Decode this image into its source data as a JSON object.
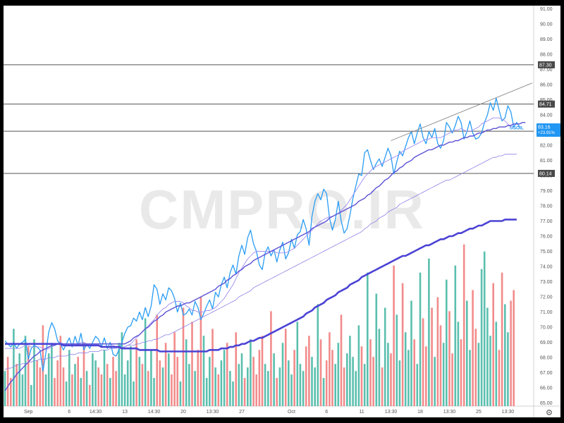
{
  "chart_data": {
    "type": "line",
    "title": "",
    "watermark": "CMPRO.IR",
    "ylim": [
      64.8,
      91.2
    ],
    "y_ticks": [
      65,
      66,
      67,
      68,
      69,
      70,
      71,
      72,
      73,
      74,
      75,
      76,
      77,
      78,
      79,
      80,
      81,
      82,
      83,
      84,
      85,
      86,
      87,
      88,
      89,
      90,
      91
    ],
    "y_tick_labels": [
      "65.00",
      "66.00",
      "67.00",
      "68.00",
      "69.00",
      "70.00",
      "71.00",
      "72.00",
      "73.00",
      "74.00",
      "75.00",
      "76.00",
      "77.00",
      "78.00",
      "79.00",
      "80.00",
      "81.00",
      "82.00",
      "83.00",
      "84.00",
      "85.00",
      "86.00",
      "87.00",
      "88.00",
      "89.00",
      "90.00",
      "91.00"
    ],
    "x_ticks": [
      {
        "label": "Sep",
        "i": 8
      },
      {
        "label": "6",
        "i": 22
      },
      {
        "label": "14:30",
        "i": 31
      },
      {
        "label": "13",
        "i": 41
      },
      {
        "label": "14:30",
        "i": 51
      },
      {
        "label": "20",
        "i": 61
      },
      {
        "label": "13:30",
        "i": 71
      },
      {
        "label": "27",
        "i": 81
      },
      {
        "label": "Oct",
        "i": 98
      },
      {
        "label": "6",
        "i": 110
      },
      {
        "label": "11",
        "i": 122
      },
      {
        "label": "13:30",
        "i": 132
      },
      {
        "label": "18",
        "i": 142
      },
      {
        "label": "13:30",
        "i": 152
      },
      {
        "label": "25",
        "i": 162
      },
      {
        "label": "13:30",
        "i": 172
      }
    ],
    "horizontal_levels": [
      {
        "value": 87.3,
        "label": "87.30",
        "color": "#555555"
      },
      {
        "value": 84.71,
        "label": "84.71",
        "color": "#555555"
      },
      {
        "value": 82.92,
        "label": "82.92",
        "color": "#555555"
      },
      {
        "value": 80.14,
        "label": "80.14",
        "color": "#555555"
      }
    ],
    "symbol": {
      "name": "USOIL",
      "price": "83.16",
      "change": "+23.91%",
      "value": 83.16,
      "color": "#2196f3"
    },
    "channel": {
      "from": [
        132,
        82.3
      ],
      "to": [
        178,
        86.1
      ],
      "color": "#888888"
    },
    "series": [
      {
        "color": "#2a9df4",
        "values": [
          69.1,
          68.9,
          68.7,
          69.0,
          68.6,
          68.9,
          69.0,
          69.2,
          67.9,
          68.6,
          68.8,
          68.7,
          68.5,
          67.1,
          68.3,
          69.7,
          70.3,
          69.9,
          69.1,
          68.9,
          68.5,
          68.9,
          69.3,
          68.7,
          69.4,
          68.8,
          69.6,
          68.5,
          68.9,
          68.6,
          69.0,
          69.4,
          69.2,
          68.7,
          69.3,
          68.6,
          69.0,
          68.2,
          68.1,
          68.5,
          69.0,
          69.6,
          70.0,
          70.1,
          70.6,
          70.4,
          71.0,
          70.5,
          71.3,
          70.7,
          71.4,
          72.8,
          72.5,
          71.5,
          72.2,
          71.8,
          72.6,
          72.4,
          71.9,
          71.0,
          71.6,
          70.8,
          70.9,
          71.2,
          70.8,
          71.7,
          71.3,
          70.5,
          70.9,
          71.4,
          71.8,
          71.2,
          72.3,
          72.0,
          72.8,
          73.3,
          72.6,
          73.6,
          74.1,
          73.5,
          74.7,
          75.4,
          74.8,
          75.9,
          76.4,
          75.5,
          75.0,
          74.1,
          73.8,
          74.9,
          75.3,
          74.7,
          75.1,
          74.3,
          75.1,
          75.6,
          74.5,
          74.9,
          75.8,
          75.2,
          76.1,
          76.3,
          77.1,
          76.5,
          75.4,
          77.3,
          78.3,
          78.8,
          78.4,
          79.1,
          78.8,
          77.2,
          76.4,
          77.1,
          78.3,
          77.0,
          76.2,
          76.5,
          77.4,
          78.5,
          79.3,
          80.1,
          80.0,
          81.5,
          81.7,
          81.0,
          80.4,
          80.8,
          81.1,
          80.6,
          81.2,
          81.8,
          81.3,
          80.1,
          80.9,
          81.6,
          81.3,
          81.9,
          82.5,
          82.9,
          82.1,
          82.8,
          83.4,
          82.5,
          82.1,
          82.9,
          82.5,
          83.1,
          82.1,
          81.8,
          82.3,
          83.5,
          83.2,
          82.8,
          83.3,
          83.9,
          83.5,
          82.4,
          82.9,
          83.6,
          82.8,
          82.4,
          82.5,
          82.8,
          83.5,
          84.0,
          84.8,
          84.3,
          85.1,
          84.3,
          83.6,
          83.8,
          84.6,
          84.2,
          83.2,
          83.5,
          83.2
        ]
      },
      {
        "color": "#9e8cf0",
        "values": [
          68.6,
          68.6,
          68.6,
          68.6,
          68.6,
          68.6,
          68.7,
          68.8,
          68.8,
          68.7,
          68.7,
          68.7,
          68.7,
          68.6,
          68.5,
          68.6,
          68.7,
          68.8,
          68.9,
          69.0,
          68.9,
          68.9,
          68.9,
          68.9,
          68.9,
          68.9,
          69.0,
          69.0,
          68.9,
          68.9,
          68.9,
          68.9,
          68.9,
          68.9,
          68.9,
          68.9,
          68.9,
          68.8,
          68.7,
          68.6,
          68.6,
          68.7,
          68.8,
          68.9,
          69.1,
          69.3,
          69.5,
          69.7,
          69.9,
          70.1,
          70.3,
          70.5,
          70.8,
          71.0,
          71.2,
          71.3,
          71.5,
          71.6,
          71.7,
          71.7,
          71.7,
          71.6,
          71.4,
          71.3,
          71.1,
          71.1,
          71.0,
          71.0,
          71.0,
          71.1,
          71.1,
          71.2,
          71.3,
          71.5,
          71.7,
          71.9,
          72.2,
          72.5,
          72.8,
          73.2,
          73.6,
          73.9,
          74.2,
          74.5,
          74.7,
          74.9,
          75.0,
          75.0,
          75.0,
          75.0,
          75.0,
          75.0,
          75.0,
          74.9,
          74.9,
          74.9,
          74.9,
          75.0,
          75.1,
          75.2,
          75.4,
          75.6,
          75.8,
          76.0,
          76.2,
          76.4,
          76.6,
          76.8,
          77.0,
          77.1,
          77.2,
          77.3,
          77.3,
          77.4,
          77.5,
          77.7,
          77.9,
          78.1,
          78.4,
          78.7,
          79.0,
          79.3,
          79.6,
          79.9,
          80.1,
          80.3,
          80.5,
          80.6,
          80.7,
          80.8,
          80.9,
          81.0,
          81.1,
          81.2,
          81.3,
          81.4,
          81.6,
          81.7,
          81.8,
          81.9,
          82.0,
          82.1,
          82.2,
          82.3,
          82.4,
          82.4,
          82.5,
          82.5,
          82.5,
          82.5,
          82.6,
          82.7,
          82.8,
          82.9,
          83.0,
          83.0,
          83.1,
          83.0,
          82.9,
          82.9,
          83.0,
          83.1,
          83.2,
          83.4,
          83.5,
          83.6,
          83.7,
          83.8,
          83.8,
          83.8,
          83.7,
          83.6,
          83.4,
          83.2,
          83.2
        ]
      },
      {
        "color": "#5c52d6",
        "values": [
          65.8,
          66.1,
          66.4,
          66.6,
          66.9,
          67.1,
          67.3,
          67.5,
          67.7,
          67.9,
          68.1,
          68.2,
          68.4,
          68.5,
          68.6,
          68.7,
          68.8,
          68.8,
          68.9,
          68.9,
          68.9,
          68.9,
          68.9,
          68.9,
          68.9,
          68.9,
          68.9,
          68.9,
          68.9,
          68.9,
          68.9,
          68.9,
          68.9,
          68.9,
          68.9,
          68.9,
          68.9,
          68.9,
          68.9,
          68.9,
          68.9,
          68.9,
          69.0,
          69.1,
          69.3,
          69.4,
          69.5,
          69.7,
          69.9,
          70.0,
          70.2,
          70.4,
          70.5,
          70.7,
          70.8,
          71.0,
          71.1,
          71.2,
          71.3,
          71.4,
          71.4,
          71.5,
          71.6,
          71.6,
          71.7,
          71.8,
          71.9,
          72.0,
          72.1,
          72.2,
          72.3,
          72.4,
          72.5,
          72.7,
          72.8,
          72.9,
          73.1,
          73.2,
          73.4,
          73.5,
          73.7,
          73.8,
          74.0,
          74.1,
          74.2,
          74.4,
          74.5,
          74.6,
          74.7,
          74.8,
          74.9,
          75.0,
          75.1,
          75.2,
          75.3,
          75.4,
          75.5,
          75.6,
          75.7,
          75.8,
          75.9,
          76.0,
          76.1,
          76.2,
          76.3,
          76.5,
          76.6,
          76.7,
          76.8,
          76.9,
          77.0,
          77.2,
          77.3,
          77.4,
          77.5,
          77.6,
          77.7,
          77.8,
          77.9,
          78.0,
          78.1,
          78.3,
          78.4,
          78.5,
          78.7,
          78.8,
          79.0,
          79.2,
          79.3,
          79.5,
          79.7,
          79.8,
          80.0,
          80.2,
          80.3,
          80.5,
          80.6,
          80.8,
          80.9,
          81.0,
          81.2,
          81.3,
          81.4,
          81.5,
          81.6,
          81.7,
          81.7,
          81.8,
          81.9,
          82.0,
          82.0,
          82.1,
          82.2,
          82.2,
          82.3,
          82.3,
          82.4,
          82.5,
          82.5,
          82.6,
          82.6,
          82.7,
          82.8,
          82.8,
          82.9,
          83.0,
          83.0,
          83.1,
          83.1,
          83.2,
          83.2,
          83.2,
          83.3,
          83.3,
          83.4,
          83.4,
          83.4,
          83.5,
          83.5
        ]
      },
      {
        "color": "#8b80e6",
        "values": [
          67.2,
          67.3,
          67.3,
          67.4,
          67.5,
          67.5,
          67.6,
          67.6,
          67.7,
          67.7,
          67.8,
          67.8,
          67.9,
          67.9,
          67.9,
          68.0,
          68.0,
          68.0,
          68.1,
          68.1,
          68.1,
          68.1,
          68.2,
          68.2,
          68.2,
          68.3,
          68.3,
          68.3,
          68.3,
          68.4,
          68.4,
          68.4,
          68.4,
          68.5,
          68.5,
          68.5,
          68.6,
          68.6,
          68.6,
          68.7,
          68.7,
          68.7,
          68.8,
          68.8,
          68.8,
          68.9,
          68.9,
          69.0,
          69.0,
          69.1,
          69.1,
          69.2,
          69.2,
          69.3,
          69.4,
          69.5,
          69.5,
          69.6,
          69.7,
          69.8,
          69.9,
          70.0,
          70.1,
          70.2,
          70.3,
          70.4,
          70.5,
          70.6,
          70.7,
          70.8,
          70.9,
          71.0,
          71.1,
          71.2,
          71.3,
          71.4,
          71.5,
          71.6,
          71.7,
          71.8,
          72.0,
          72.1,
          72.2,
          72.3,
          72.4,
          72.6,
          72.7,
          72.8,
          72.9,
          73.0,
          73.1,
          73.2,
          73.3,
          73.4,
          73.5,
          73.6,
          73.7,
          73.8,
          73.9,
          74.0,
          74.1,
          74.2,
          74.3,
          74.4,
          74.5,
          74.6,
          74.7,
          74.8,
          74.9,
          75.0,
          75.1,
          75.2,
          75.3,
          75.4,
          75.5,
          75.6,
          75.7,
          75.8,
          75.9,
          76.0,
          76.1,
          76.2,
          76.3,
          76.5,
          76.6,
          76.8,
          76.9,
          77.0,
          77.2,
          77.3,
          77.4,
          77.6,
          77.7,
          77.8,
          77.9,
          78.1,
          78.2,
          78.3,
          78.4,
          78.5,
          78.6,
          78.7,
          78.8,
          78.9,
          79.0,
          79.1,
          79.2,
          79.3,
          79.4,
          79.5,
          79.6,
          79.7,
          79.7,
          79.8,
          79.9,
          80.0,
          80.1,
          80.2,
          80.3,
          80.4,
          80.5,
          80.6,
          80.7,
          80.8,
          80.9,
          81.0,
          81.1,
          81.2,
          81.2,
          81.3,
          81.3,
          81.4,
          81.4,
          81.4,
          81.4,
          81.4
        ]
      },
      {
        "color": "#4b43d4",
        "values": [
          68.9,
          68.9,
          68.9,
          68.9,
          68.9,
          68.9,
          68.9,
          68.9,
          68.9,
          68.9,
          68.9,
          68.9,
          68.9,
          68.9,
          68.9,
          68.9,
          68.9,
          68.9,
          68.9,
          68.9,
          68.8,
          68.8,
          68.8,
          68.8,
          68.8,
          68.8,
          68.8,
          68.8,
          68.8,
          68.8,
          68.8,
          68.8,
          68.8,
          68.7,
          68.7,
          68.7,
          68.7,
          68.7,
          68.7,
          68.7,
          68.6,
          68.6,
          68.6,
          68.6,
          68.6,
          68.6,
          68.5,
          68.5,
          68.5,
          68.5,
          68.5,
          68.5,
          68.5,
          68.4,
          68.4,
          68.4,
          68.4,
          68.4,
          68.4,
          68.4,
          68.4,
          68.4,
          68.4,
          68.4,
          68.4,
          68.4,
          68.4,
          68.4,
          68.4,
          68.4,
          68.5,
          68.5,
          68.5,
          68.5,
          68.6,
          68.6,
          68.6,
          68.7,
          68.7,
          68.8,
          68.8,
          68.9,
          68.9,
          69.0,
          69.1,
          69.1,
          69.2,
          69.3,
          69.3,
          69.4,
          69.5,
          69.6,
          69.7,
          69.8,
          69.9,
          70.0,
          70.1,
          70.2,
          70.3,
          70.4,
          70.5,
          70.6,
          70.7,
          70.9,
          71.0,
          71.1,
          71.3,
          71.4,
          71.5,
          71.6,
          71.8,
          71.9,
          72.0,
          72.1,
          72.3,
          72.4,
          72.5,
          72.6,
          72.8,
          72.9,
          73.0,
          73.1,
          73.3,
          73.4,
          73.5,
          73.6,
          73.7,
          73.8,
          73.9,
          74.0,
          74.1,
          74.2,
          74.3,
          74.4,
          74.5,
          74.6,
          74.7,
          74.7,
          74.8,
          74.9,
          75.0,
          75.1,
          75.2,
          75.3,
          75.4,
          75.4,
          75.5,
          75.6,
          75.7,
          75.8,
          75.8,
          75.9,
          76.0,
          76.0,
          76.1,
          76.2,
          76.2,
          76.3,
          76.4,
          76.5,
          76.5,
          76.6,
          76.7,
          76.7,
          76.8,
          76.9,
          77.0,
          77.0,
          77.0,
          77.0,
          77.0,
          77.1,
          77.1,
          77.1,
          77.1,
          77.1
        ]
      }
    ],
    "volume": {
      "ylim": [
        0,
        52
      ],
      "up_color": "#5bbfae",
      "down_color": "#f28b8b",
      "values": [
        10,
        14,
        8,
        22,
        12,
        15,
        9,
        20,
        17,
        6,
        19,
        13,
        11,
        23,
        9,
        15,
        18,
        8,
        13,
        20,
        11,
        7,
        16,
        9,
        12,
        14,
        8,
        18,
        10,
        6,
        15,
        13,
        11,
        9,
        16,
        12,
        8,
        14,
        10,
        18,
        21,
        9,
        13,
        17,
        7,
        19,
        14,
        12,
        25,
        10,
        16,
        8,
        26,
        13,
        11,
        18,
        15,
        9,
        21,
        14,
        7,
        28,
        19,
        12,
        24,
        10,
        16,
        31,
        20,
        8,
        14,
        22,
        11,
        9,
        13,
        16,
        18,
        10,
        7,
        21,
        12,
        15,
        8,
        11,
        19,
        14,
        9,
        16,
        20,
        12,
        10,
        27,
        15,
        8,
        11,
        18,
        22,
        13,
        9,
        16,
        24,
        12,
        10,
        17,
        20,
        14,
        11,
        29,
        19,
        8,
        13,
        21,
        16,
        12,
        18,
        26,
        11,
        15,
        20,
        14,
        10,
        23,
        17,
        12,
        38,
        19,
        14,
        32,
        22,
        11,
        28,
        18,
        15,
        40,
        26,
        13,
        35,
        21,
        16,
        30,
        19,
        12,
        38,
        25,
        17,
        42,
        28,
        14,
        31,
        23,
        18,
        36,
        27,
        15,
        40,
        24,
        19,
        46,
        30,
        16,
        33,
        22,
        18,
        39,
        44,
        28,
        20,
        35,
        24,
        16,
        38,
        29,
        21,
        30,
        33
      ]
    }
  }
}
